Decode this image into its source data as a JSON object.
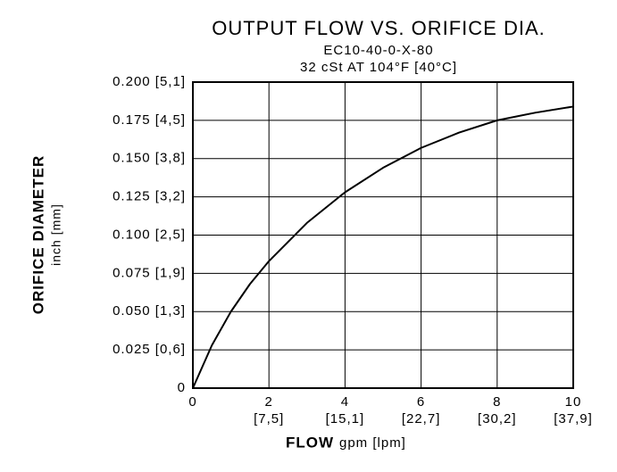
{
  "chart_data": {
    "type": "line",
    "title": "OUTPUT FLOW VS. ORIFICE DIA.",
    "subtitle": [
      "EC10-40-0-X-80",
      "32 cSt AT 104°F [40°C]"
    ],
    "y_label": "ORIFICE DIAMETER",
    "y_label_units": "inch [mm]",
    "x_label": "FLOW",
    "x_label_units": "gpm [lpm]",
    "x": [
      0,
      0.5,
      1,
      1.5,
      2,
      3,
      4,
      5,
      6,
      7,
      8,
      9,
      10
    ],
    "series": [
      {
        "color": "#000000",
        "values": [
          0,
          0.028,
          0.05,
          0.068,
          0.083,
          0.108,
          0.128,
          0.144,
          0.157,
          0.167,
          0.175,
          0.18,
          0.184
        ]
      }
    ],
    "xlim": [
      0,
      10
    ],
    "ylim": [
      0,
      0.2
    ],
    "xticks": [
      0,
      2,
      4,
      6,
      8,
      10
    ],
    "xticks_secondary": [
      {
        "value": 2,
        "label": "[7,5]"
      },
      {
        "value": 4,
        "label": "[15,1]"
      },
      {
        "value": 6,
        "label": "[22,7]"
      },
      {
        "value": 8,
        "label": "[30,2]"
      },
      {
        "value": 10,
        "label": "[37,9]"
      }
    ],
    "yticks": [
      0,
      {
        "value": 0.025,
        "label": "0.025 [0,6]"
      },
      {
        "value": 0.05,
        "label": "0.050 [1,3]"
      },
      {
        "value": 0.075,
        "label": "0.075 [1,9]"
      },
      {
        "value": 0.1,
        "label": "0.100 [2,5]"
      },
      {
        "value": 0.125,
        "label": "0.125 [3,2]"
      },
      {
        "value": 0.15,
        "label": "0.150 [3,8]"
      },
      {
        "value": 0.175,
        "label": "0.175 [4,5]"
      },
      {
        "value": 0.2,
        "label": "0.200 [5,1]"
      }
    ],
    "grid": true
  }
}
